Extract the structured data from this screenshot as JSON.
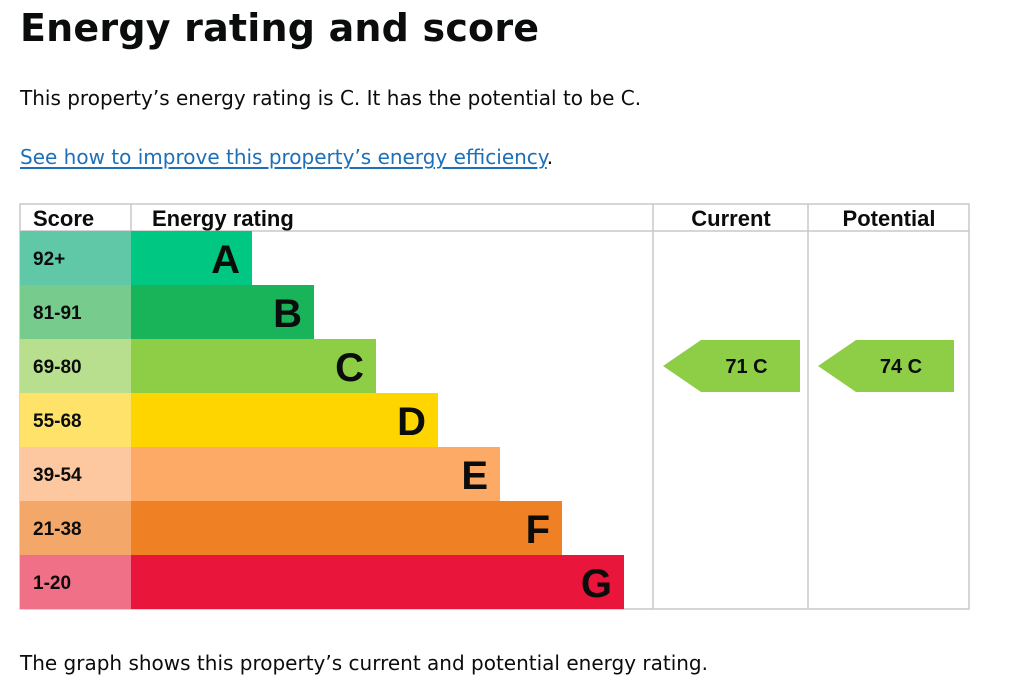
{
  "page": {
    "title": "Energy rating and score",
    "summary": "This property’s energy rating is C. It has the potential to be C.",
    "link_text": "See how to improve this property’s energy efficiency",
    "link_suffix": ".",
    "footer": "The graph shows this property’s current and potential energy rating."
  },
  "chart_data": {
    "type": "bar",
    "headers": {
      "score": "Score",
      "rating": "Energy rating",
      "current": "Current",
      "potential": "Potential"
    },
    "bands": [
      {
        "score": "92+",
        "letter": "A",
        "bar_color": "#00c781",
        "score_bg": "#60c8a6"
      },
      {
        "score": "81-91",
        "letter": "B",
        "bar_color": "#19b459",
        "score_bg": "#76cb8d"
      },
      {
        "score": "69-80",
        "letter": "C",
        "bar_color": "#8dce46",
        "score_bg": "#b8df8e"
      },
      {
        "score": "55-68",
        "letter": "D",
        "bar_color": "#ffd500",
        "score_bg": "#ffe26a"
      },
      {
        "score": "39-54",
        "letter": "E",
        "bar_color": "#fcaa65",
        "score_bg": "#fdc8a0"
      },
      {
        "score": "21-38",
        "letter": "F",
        "bar_color": "#ef8023",
        "score_bg": "#f3a86a"
      },
      {
        "score": "1-20",
        "letter": "G",
        "bar_color": "#e9153b",
        "score_bg": "#f07088"
      }
    ],
    "current": {
      "score": 71,
      "band": "C",
      "label": "71 C",
      "color": "#8dce46"
    },
    "potential": {
      "score": 74,
      "band": "C",
      "label": "74 C",
      "color": "#8dce46"
    }
  }
}
